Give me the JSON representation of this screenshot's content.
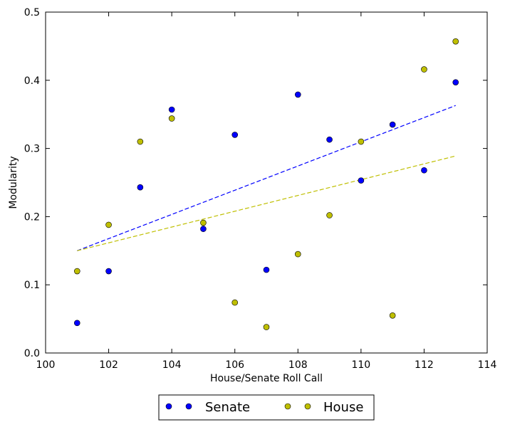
{
  "chart_data": {
    "type": "scatter",
    "xlabel": "House/Senate Roll Call",
    "ylabel": "Modularity",
    "xlim": [
      100,
      114
    ],
    "ylim": [
      0.0,
      0.5
    ],
    "xticks": [
      100,
      102,
      104,
      106,
      108,
      110,
      112,
      114
    ],
    "xtick_labels": [
      "100",
      "102",
      "104",
      "106",
      "108",
      "110",
      "112",
      "114"
    ],
    "yticks": [
      0.0,
      0.1,
      0.2,
      0.3,
      0.4,
      0.5
    ],
    "ytick_labels": [
      "0.0",
      "0.1",
      "0.2",
      "0.3",
      "0.4",
      "0.5"
    ],
    "grid": false,
    "legend_position": "bottom-center-outside",
    "series": [
      {
        "name": "Senate",
        "color": "#0000ff",
        "x": [
          101,
          102,
          103,
          104,
          105,
          106,
          107,
          108,
          109,
          110,
          111,
          112,
          113
        ],
        "y": [
          0.044,
          0.12,
          0.243,
          0.357,
          0.182,
          0.32,
          0.122,
          0.379,
          0.313,
          0.253,
          0.335,
          0.268,
          0.397
        ],
        "trend": {
          "x": [
            101,
            113
          ],
          "y": [
            0.15,
            0.363
          ]
        }
      },
      {
        "name": "House",
        "color": "#bfbf00",
        "x": [
          101,
          102,
          103,
          104,
          105,
          106,
          107,
          108,
          109,
          110,
          111,
          112,
          113
        ],
        "y": [
          0.12,
          0.188,
          0.31,
          0.344,
          0.191,
          0.074,
          0.038,
          0.145,
          0.202,
          0.31,
          0.055,
          0.416,
          0.457
        ],
        "trend": {
          "x": [
            101,
            113
          ],
          "y": [
            0.15,
            0.289
          ]
        }
      }
    ]
  }
}
